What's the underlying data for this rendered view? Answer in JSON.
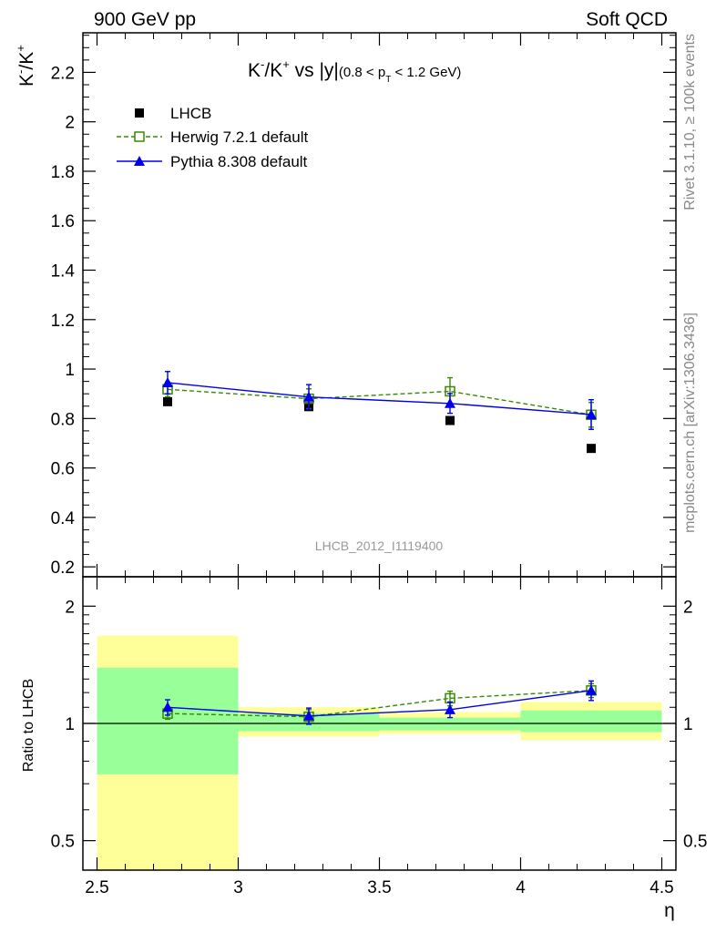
{
  "header": {
    "left": "900 GeV pp",
    "right": "Soft QCD"
  },
  "side_labels": {
    "rivet": "Rivet 3.1.10, ≥ 100k events",
    "mcplots": "mcplots.cern.ch [arXiv:1306.3436]"
  },
  "watermark": "LHCB_2012_I1119400",
  "colors": {
    "data": "#000000",
    "herwig": "#3a8a00",
    "pythia": "#0000ee",
    "band_yellow": "#ffff99",
    "band_green": "#99ff99"
  },
  "chart_data": [
    {
      "type": "line",
      "panel": "main",
      "title": {
        "t1": "K",
        "t1sup": "-",
        "t2": "/K",
        "t2sup": "+",
        "t3": " vs |y|",
        "t4": "(0.8 < p",
        "t4sub": "T",
        "t5": " < 1.2 GeV)"
      },
      "ylabel": {
        "a": "K",
        "a_sup": "-",
        "b": "/K",
        "b_sup": "+"
      },
      "ylim": [
        0.16,
        2.36
      ],
      "yticks": [
        0.2,
        0.4,
        0.6,
        0.8,
        1,
        1.2,
        1.4,
        1.6,
        1.8,
        2,
        2.2
      ],
      "ytick_labels": [
        "0.2",
        "0.4",
        "0.6",
        "0.8",
        "1",
        "1.2",
        "1.4",
        "1.6",
        "1.8",
        "2",
        "2.2"
      ],
      "xlim": [
        2.45,
        4.55
      ],
      "legend": {
        "placement": "top-left",
        "entries": [
          "LHCB",
          "Herwig 7.2.1 default",
          "Pythia 8.308 default"
        ]
      },
      "series": [
        {
          "name": "LHCB",
          "x": [
            2.75,
            3.25,
            3.75,
            4.25
          ],
          "y": [
            0.868,
            0.848,
            0.792,
            0.679
          ]
        },
        {
          "name": "Herwig 7.2.1 default",
          "x": [
            2.75,
            3.25,
            3.75,
            4.25
          ],
          "y": [
            0.918,
            0.88,
            0.91,
            0.815
          ],
          "err": [
            0.03,
            0.04,
            0.055,
            0.05
          ]
        },
        {
          "name": "Pythia 8.308 default",
          "x": [
            2.75,
            3.25,
            3.75,
            4.25
          ],
          "y": [
            0.945,
            0.887,
            0.861,
            0.816
          ],
          "err": [
            0.045,
            0.05,
            0.04,
            0.06
          ]
        }
      ]
    },
    {
      "type": "line",
      "panel": "ratio",
      "ylabel": "Ratio to LHCB",
      "ylim": [
        0.42,
        2.38
      ],
      "yscale": "log",
      "yticks": [
        0.5,
        1,
        2
      ],
      "ytick_labels": [
        "0.5",
        "1",
        "2"
      ],
      "xlabel": "η",
      "xlim": [
        2.45,
        4.55
      ],
      "xticks": [
        2.5,
        3,
        3.5,
        4,
        4.5
      ],
      "xtick_labels": [
        "2.5",
        "3",
        "3.5",
        "4",
        "4.5"
      ],
      "bands": [
        {
          "x0": 2.5,
          "x1": 3.0,
          "yellow": [
            0.42,
            1.68
          ],
          "green": [
            0.74,
            1.39
          ]
        },
        {
          "x0": 3.0,
          "x1": 3.5,
          "yellow": [
            0.925,
            1.1
          ],
          "green": [
            0.955,
            1.06
          ]
        },
        {
          "x0": 3.5,
          "x1": 4.0,
          "yellow": [
            0.94,
            1.07
          ],
          "green": [
            0.96,
            1.035
          ]
        },
        {
          "x0": 4.0,
          "x1": 4.5,
          "yellow": [
            0.905,
            1.135
          ],
          "green": [
            0.95,
            1.08
          ]
        }
      ],
      "series": [
        {
          "name": "Herwig 7.2.1 default",
          "x": [
            2.75,
            3.25,
            3.75,
            4.25
          ],
          "y": [
            1.06,
            1.04,
            1.16,
            1.215
          ],
          "err": [
            0.035,
            0.045,
            0.05,
            0.05
          ]
        },
        {
          "name": "Pythia 8.308 default",
          "x": [
            2.75,
            3.25,
            3.75,
            4.25
          ],
          "y": [
            1.1,
            1.045,
            1.085,
            1.215
          ],
          "err": [
            0.05,
            0.05,
            0.05,
            0.07
          ]
        }
      ]
    }
  ]
}
